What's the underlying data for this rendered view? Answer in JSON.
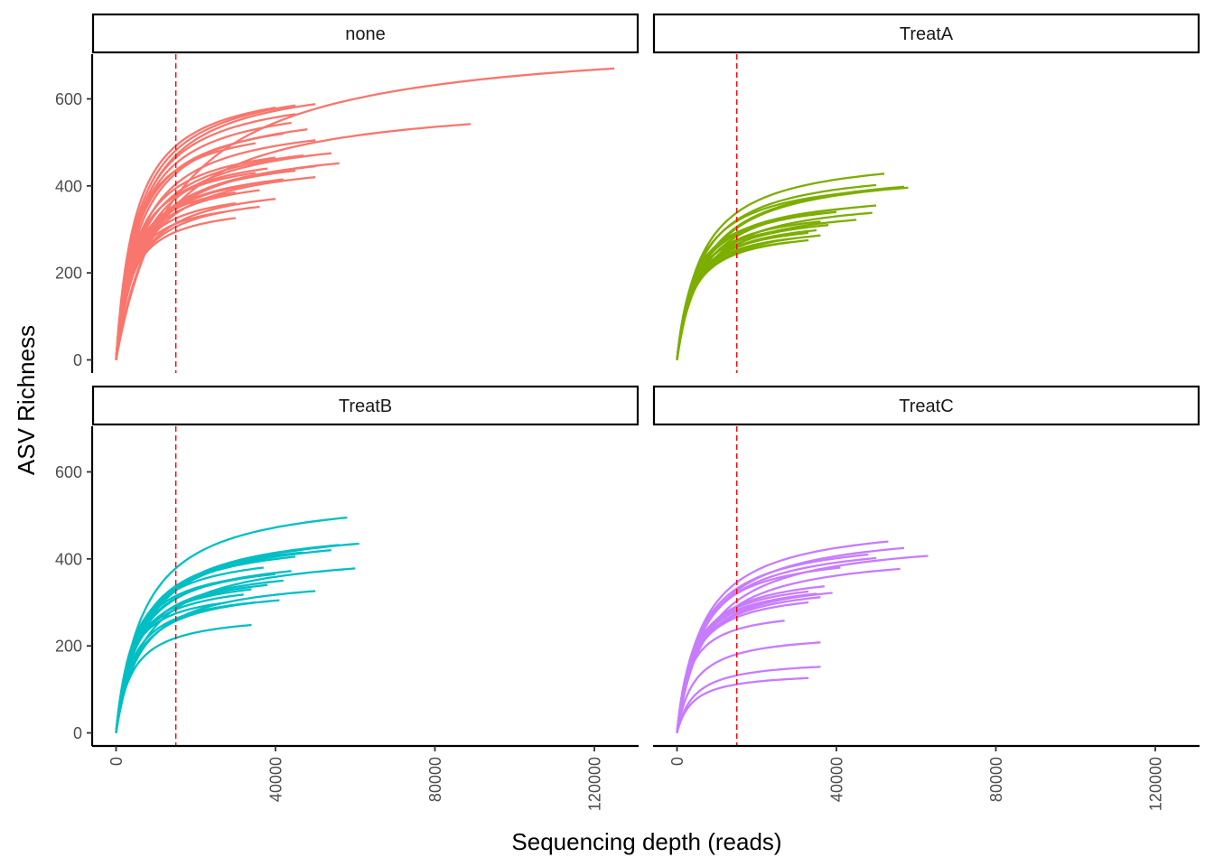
{
  "chart_data": {
    "type": "line",
    "xlabel": "Sequencing depth (reads)",
    "ylabel": "ASV Richness",
    "xlim": [
      -6000,
      131000
    ],
    "ylim": [
      -25,
      700
    ],
    "x_ticks": [
      0,
      40000,
      80000,
      120000
    ],
    "x_tick_labels": [
      "0",
      "40000",
      "80000",
      "120000"
    ],
    "y_ticks": [
      0,
      200,
      400,
      600
    ],
    "y_tick_labels": [
      "0",
      "200",
      "400",
      "600"
    ],
    "reference_line": {
      "x": 15000,
      "color": "#ff0000",
      "style": "dashed"
    },
    "legend": "none",
    "grid": false,
    "facets": [
      {
        "label": "none",
        "color": "#f8766d",
        "curves": [
          {
            "depth": 125000,
            "richness": 670
          },
          {
            "depth": 89000,
            "richness": 542
          },
          {
            "depth": 50000,
            "richness": 588
          },
          {
            "depth": 45000,
            "richness": 585
          },
          {
            "depth": 40000,
            "richness": 580
          },
          {
            "depth": 45000,
            "richness": 565
          },
          {
            "depth": 44000,
            "richness": 545
          },
          {
            "depth": 48000,
            "richness": 530
          },
          {
            "depth": 42000,
            "richness": 520
          },
          {
            "depth": 50000,
            "richness": 505
          },
          {
            "depth": 35000,
            "richness": 498
          },
          {
            "depth": 54000,
            "richness": 475
          },
          {
            "depth": 47000,
            "richness": 470
          },
          {
            "depth": 40000,
            "richness": 465
          },
          {
            "depth": 56000,
            "richness": 452
          },
          {
            "depth": 50000,
            "richness": 445
          },
          {
            "depth": 38000,
            "richness": 440
          },
          {
            "depth": 45000,
            "richness": 435
          },
          {
            "depth": 35000,
            "richness": 430
          },
          {
            "depth": 50000,
            "richness": 420
          },
          {
            "depth": 42000,
            "richness": 415
          },
          {
            "depth": 38000,
            "richness": 410
          },
          {
            "depth": 33000,
            "richness": 400
          },
          {
            "depth": 36000,
            "richness": 390
          },
          {
            "depth": 30000,
            "richness": 385
          },
          {
            "depth": 40000,
            "richness": 370
          },
          {
            "depth": 36000,
            "richness": 352
          },
          {
            "depth": 30000,
            "richness": 360
          },
          {
            "depth": 27000,
            "richness": 340
          },
          {
            "depth": 30000,
            "richness": 326
          }
        ]
      },
      {
        "label": "TreatA",
        "color": "#7cae00",
        "curves": [
          {
            "depth": 52000,
            "richness": 428
          },
          {
            "depth": 57000,
            "richness": 398
          },
          {
            "depth": 58000,
            "richness": 396
          },
          {
            "depth": 50000,
            "richness": 402
          },
          {
            "depth": 44000,
            "richness": 385
          },
          {
            "depth": 50000,
            "richness": 355
          },
          {
            "depth": 42000,
            "richness": 348
          },
          {
            "depth": 40000,
            "richness": 340
          },
          {
            "depth": 35000,
            "richness": 335
          },
          {
            "depth": 49000,
            "richness": 338
          },
          {
            "depth": 45000,
            "richness": 322
          },
          {
            "depth": 36000,
            "richness": 318
          },
          {
            "depth": 38000,
            "richness": 310
          },
          {
            "depth": 32000,
            "richness": 305
          },
          {
            "depth": 35000,
            "richness": 298
          },
          {
            "depth": 33000,
            "richness": 292
          },
          {
            "depth": 36000,
            "richness": 286
          },
          {
            "depth": 30000,
            "richness": 280
          },
          {
            "depth": 33000,
            "richness": 275
          },
          {
            "depth": 28000,
            "richness": 270
          }
        ]
      },
      {
        "label": "TreatB",
        "color": "#00bfc4",
        "curves": [
          {
            "depth": 58000,
            "richness": 495
          },
          {
            "depth": 61000,
            "richness": 435
          },
          {
            "depth": 56000,
            "richness": 432
          },
          {
            "depth": 54000,
            "richness": 420
          },
          {
            "depth": 47000,
            "richness": 415
          },
          {
            "depth": 45000,
            "richness": 405
          },
          {
            "depth": 60000,
            "richness": 378
          },
          {
            "depth": 37000,
            "richness": 380
          },
          {
            "depth": 40000,
            "richness": 365
          },
          {
            "depth": 44000,
            "richness": 372
          },
          {
            "depth": 35000,
            "richness": 360
          },
          {
            "depth": 42000,
            "richness": 350
          },
          {
            "depth": 38000,
            "richness": 340
          },
          {
            "depth": 50000,
            "richness": 326
          },
          {
            "depth": 34000,
            "richness": 330
          },
          {
            "depth": 32000,
            "richness": 318
          },
          {
            "depth": 35000,
            "richness": 300
          },
          {
            "depth": 41000,
            "richness": 305
          },
          {
            "depth": 28000,
            "richness": 300
          },
          {
            "depth": 34000,
            "richness": 248
          }
        ]
      },
      {
        "label": "TreatC",
        "color": "#c77cff",
        "curves": [
          {
            "depth": 53000,
            "richness": 440
          },
          {
            "depth": 57000,
            "richness": 425
          },
          {
            "depth": 63000,
            "richness": 407
          },
          {
            "depth": 48000,
            "richness": 410
          },
          {
            "depth": 50000,
            "richness": 402
          },
          {
            "depth": 56000,
            "richness": 377
          },
          {
            "depth": 41000,
            "richness": 380
          },
          {
            "depth": 37000,
            "richness": 337
          },
          {
            "depth": 39000,
            "richness": 322
          },
          {
            "depth": 33000,
            "richness": 325
          },
          {
            "depth": 35000,
            "richness": 320
          },
          {
            "depth": 31000,
            "richness": 315
          },
          {
            "depth": 36000,
            "richness": 312
          },
          {
            "depth": 33000,
            "richness": 300
          },
          {
            "depth": 27000,
            "richness": 258
          },
          {
            "depth": 36000,
            "richness": 208
          },
          {
            "depth": 36000,
            "richness": 152
          },
          {
            "depth": 33000,
            "richness": 126
          }
        ]
      }
    ]
  }
}
